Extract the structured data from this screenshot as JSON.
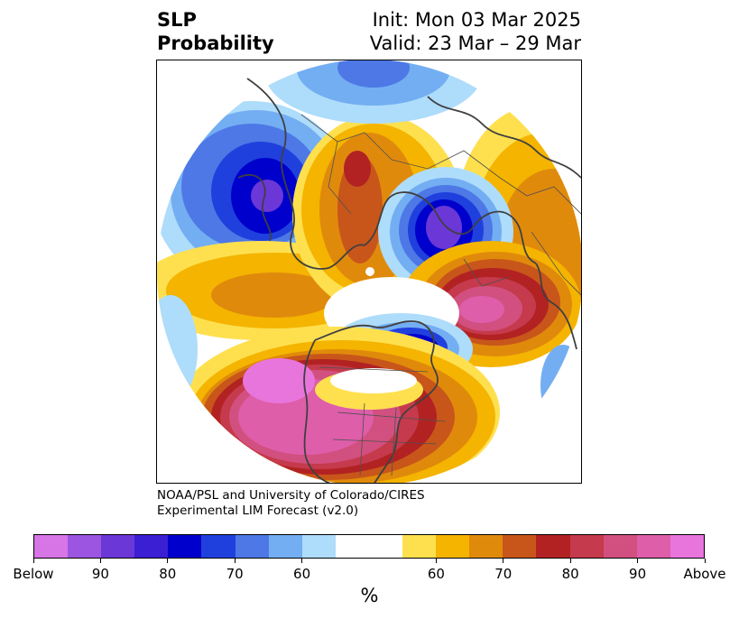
{
  "title": {
    "left_line1": "SLP",
    "left_line2": "Probability",
    "right_line1": "Init: Mon 03 Mar 2025",
    "right_line2": "Valid: 23 Mar – 29 Mar"
  },
  "credit": {
    "line1": "NOAA/PSL and University of Colorado/CIRES",
    "line2": "Experimental LIM Forecast (v2.0)"
  },
  "colorbar": {
    "colors": [
      "#d774e6",
      "#9c55e0",
      "#6b37d6",
      "#3a1fd3",
      "#0000cc",
      "#2040dd",
      "#4d78e6",
      "#73aef2",
      "#aedcfb",
      "#ffffff",
      "#ffffff",
      "#fee04f",
      "#f4b400",
      "#e08a0c",
      "#c8561a",
      "#b22222",
      "#c53a4c",
      "#d2507f",
      "#de5eaa",
      "#e875dc"
    ],
    "labels": [
      "Below",
      "90",
      "80",
      "70",
      "60",
      "60",
      "70",
      "80",
      "90",
      "Above"
    ],
    "unit": "%"
  },
  "map": {
    "projection": "north-polar-stereographic",
    "features": [
      "coastlines",
      "country-borders",
      "us-state-borders"
    ]
  }
}
